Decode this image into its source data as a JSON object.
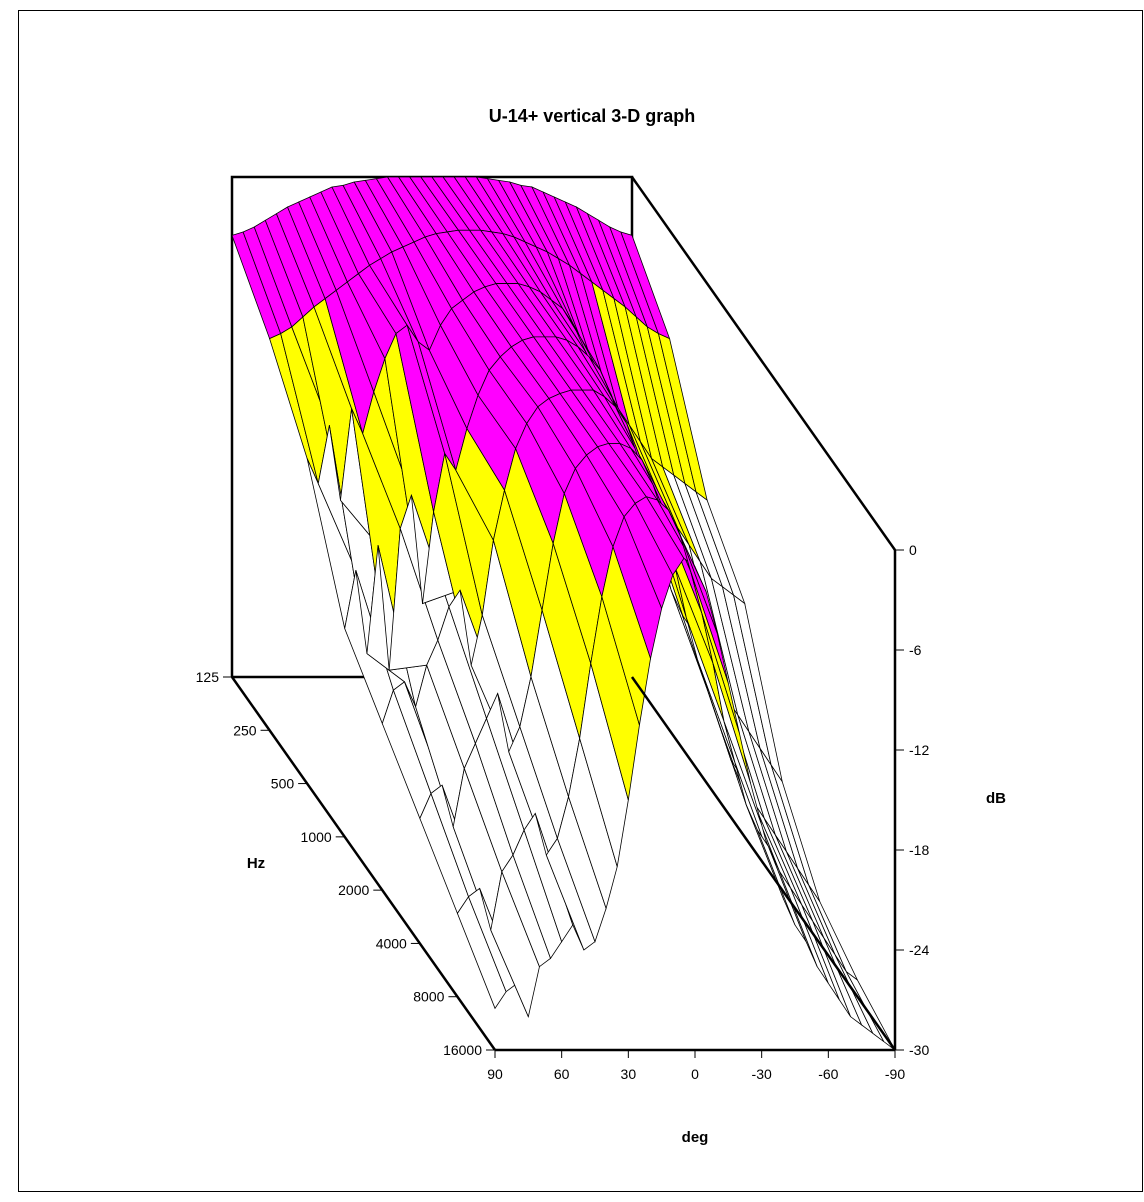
{
  "chart_data": {
    "type": "surface3d",
    "title": "U-14+ vertical 3-D graph",
    "xlabel": "deg",
    "ylabel": "Hz",
    "zlabel": "dB",
    "x_ticks": [
      "90",
      "60",
      "30",
      "0",
      "-30",
      "-60",
      "-90"
    ],
    "y_ticks": [
      "125",
      "250",
      "500",
      "1000",
      "2000",
      "4000",
      "8000",
      "16000"
    ],
    "z_ticks": [
      "0",
      "-6",
      "-12",
      "-18",
      "-24",
      "-30"
    ],
    "xlim": [
      90,
      -90
    ],
    "ylim": [
      125,
      16000
    ],
    "zlim": [
      -30,
      0
    ],
    "y_scale": "log",
    "angles_deg": [
      90,
      85,
      80,
      75,
      70,
      65,
      60,
      55,
      50,
      45,
      40,
      35,
      30,
      25,
      20,
      15,
      10,
      5,
      0,
      -5,
      -10,
      -15,
      -20,
      -25,
      -30,
      -35,
      -40,
      -45,
      -50,
      -55,
      -60,
      -65,
      -70,
      -75,
      -80,
      -85,
      -90
    ],
    "frequencies_hz": [
      125,
      250,
      500,
      1000,
      2000,
      4000,
      8000,
      16000
    ],
    "color_bands": [
      {
        "from": 0,
        "to": -6,
        "color": "#ff00ff"
      },
      {
        "from": -6,
        "to": -12,
        "color": "#ffff00"
      },
      {
        "from": -12,
        "to": -30,
        "color": "#ffffff"
      }
    ],
    "values_db": [
      [
        -3.5,
        -3.3,
        -3.0,
        -2.6,
        -2.2,
        -1.8,
        -1.5,
        -1.2,
        -0.9,
        -0.6,
        -0.5,
        -0.3,
        -0.2,
        -0.1,
        0,
        0,
        0,
        0,
        0,
        0,
        0,
        0,
        0,
        -0.1,
        -0.2,
        -0.3,
        -0.5,
        -0.6,
        -0.9,
        -1.2,
        -1.5,
        -1.8,
        -2.2,
        -2.6,
        -3.0,
        -3.3,
        -3.5
      ],
      [
        -6.5,
        -6.2,
        -5.8,
        -5.2,
        -4.6,
        -4.1,
        -3.6,
        -3.1,
        -2.6,
        -2.1,
        -1.7,
        -1.3,
        -1.0,
        -0.7,
        -0.4,
        -0.2,
        -0.1,
        0,
        0,
        0,
        -0.1,
        -0.2,
        -0.4,
        -0.7,
        -1.0,
        -1.3,
        -1.7,
        -2.1,
        -2.6,
        -3.1,
        -3.6,
        -4.1,
        -4.6,
        -5.2,
        -5.8,
        -6.2,
        -6.5
      ],
      [
        -10.5,
        -12.0,
        -8.5,
        -13.0,
        -7.5,
        -9.0,
        -6.5,
        -4.5,
        -3.0,
        -2.5,
        -3.5,
        -4.0,
        -2.5,
        -1.5,
        -1.0,
        -0.5,
        -0.2,
        0,
        0,
        0,
        -0.2,
        -0.5,
        -1.0,
        -1.5,
        -2.5,
        -4.0,
        -5.5,
        -6.5,
        -7.5,
        -8.5,
        -9.5,
        -10.5,
        -11.0,
        -11.5,
        -12.0,
        -12.5,
        -13.0
      ],
      [
        -17.5,
        -14.0,
        -19.0,
        -12.5,
        -20.0,
        -11.5,
        -9.5,
        -16.0,
        -10.5,
        -7.0,
        -8.0,
        -5.5,
        -3.5,
        -2.0,
        -1.2,
        -0.6,
        -0.2,
        0,
        0,
        0,
        -0.2,
        -0.6,
        -1.2,
        -2.0,
        -3.5,
        -5.5,
        -7.0,
        -8.0,
        -9.5,
        -10.5,
        -11.5,
        -12.5,
        -13.5,
        -14.5,
        -15.0,
        -15.5,
        -16.0
      ],
      [
        -20.0,
        -18.0,
        -17.5,
        -19.0,
        -16.5,
        -15.0,
        -13.0,
        -12.0,
        -16.5,
        -13.5,
        -9.0,
        -6.0,
        -3.5,
        -2.0,
        -1.0,
        -0.5,
        -0.2,
        0,
        0,
        0,
        -0.4,
        -1.0,
        -2.0,
        -4.0,
        -6.5,
        -9.5,
        -12.0,
        -13.5,
        -14.5,
        -15.5,
        -17.0,
        -18.5,
        -19.5,
        -20.5,
        -21.5,
        -22.5,
        -23.5
      ],
      [
        -22.5,
        -21.0,
        -20.5,
        -23.0,
        -19.5,
        -18.0,
        -16.5,
        -15.0,
        -18.5,
        -17.0,
        -14.0,
        -10.0,
        -6.0,
        -3.0,
        -1.5,
        -0.7,
        -0.2,
        0,
        0,
        -0.3,
        -1.0,
        -2.5,
        -4.5,
        -7.5,
        -10.5,
        -13.0,
        -15.0,
        -17.0,
        -19.0,
        -20.0,
        -21.5,
        -22.5,
        -23.5,
        -24.5,
        -25.5,
        -26.5,
        -27.5
      ],
      [
        -25.0,
        -24.0,
        -23.5,
        -26.0,
        -22.5,
        -21.5,
        -20.0,
        -19.0,
        -21.5,
        -20.5,
        -18.0,
        -14.5,
        -10.0,
        -6.0,
        -3.0,
        -1.2,
        -0.4,
        0,
        -0.2,
        -0.8,
        -2.2,
        -4.5,
        -7.0,
        -10.0,
        -13.5,
        -16.0,
        -18.5,
        -20.0,
        -21.0,
        -22.5,
        -23.5,
        -24.5,
        -25.5,
        -26.5,
        -27.5,
        -28.5,
        -29.0
      ],
      [
        -27.5,
        -26.5,
        -26.0,
        -28.0,
        -25.0,
        -24.5,
        -23.5,
        -22.5,
        -24.0,
        -23.5,
        -21.5,
        -19.0,
        -15.0,
        -10.5,
        -6.5,
        -3.5,
        -1.5,
        -0.5,
        -1.0,
        -2.5,
        -5.0,
        -8.0,
        -11.0,
        -14.0,
        -16.5,
        -19.0,
        -21.0,
        -22.5,
        -23.5,
        -25.0,
        -26.0,
        -27.0,
        -28.0,
        -28.5,
        -29.0,
        -29.5,
        -30.0
      ]
    ]
  }
}
